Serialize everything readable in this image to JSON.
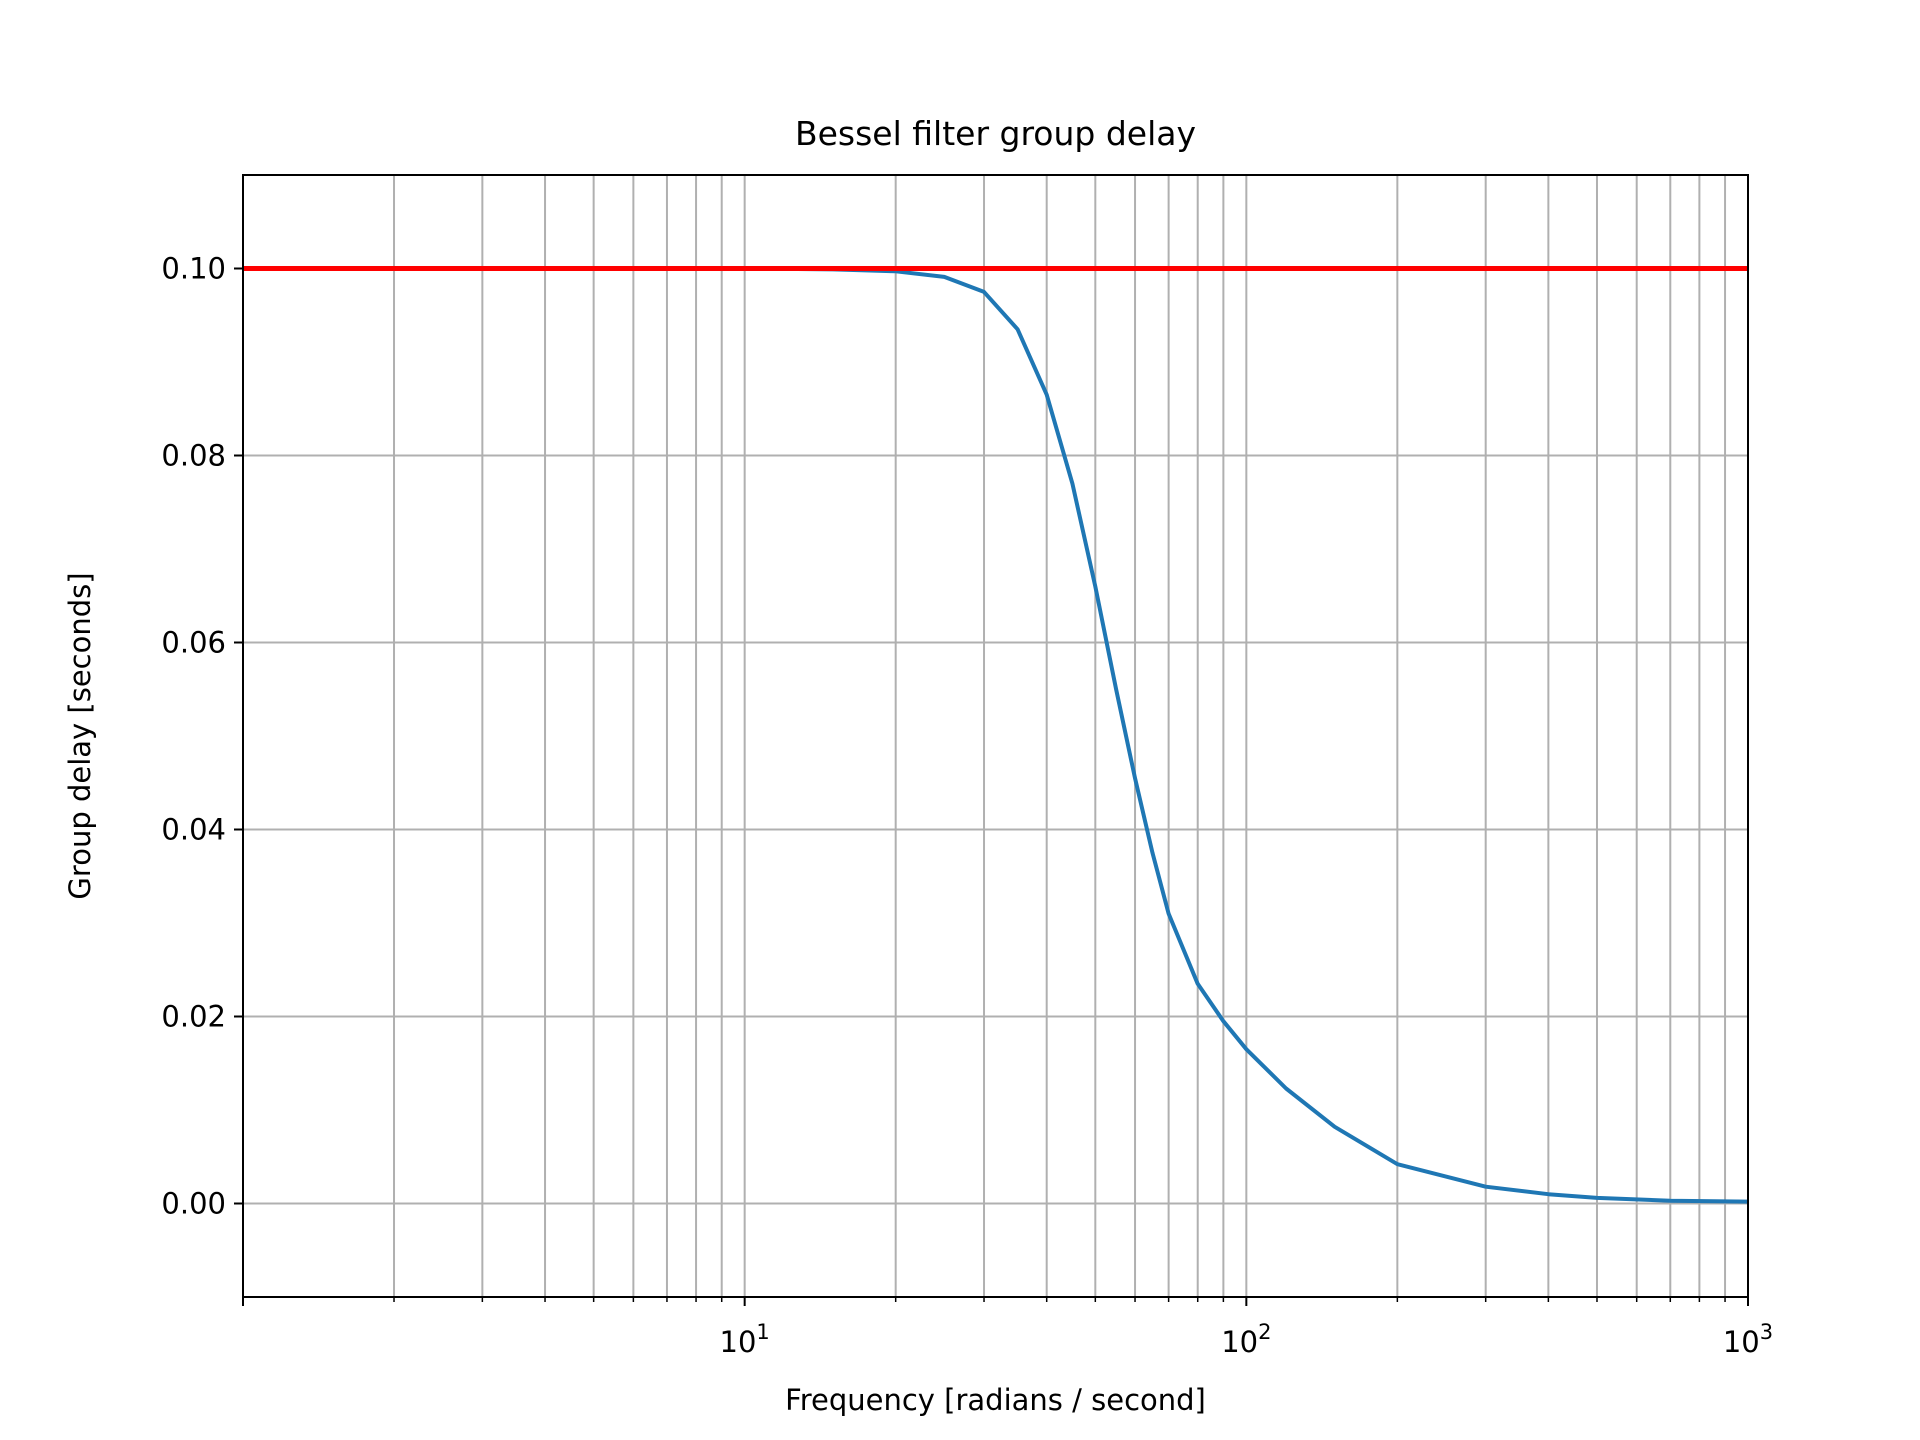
{
  "chart_data": {
    "type": "line",
    "title": "Bessel filter group delay",
    "xlabel": "Frequency [radians / second]",
    "ylabel": "Group delay [seconds]",
    "xscale": "log",
    "xlim": [
      1,
      1000
    ],
    "ylim": [
      -0.01,
      0.11
    ],
    "grid": {
      "major": true,
      "minor_x": true
    },
    "x_ticks": [
      {
        "value": 10,
        "base": "10",
        "exp": "1"
      },
      {
        "value": 100,
        "base": "10",
        "exp": "2"
      },
      {
        "value": 1000,
        "base": "10",
        "exp": "3"
      }
    ],
    "y_ticks": [
      {
        "value": 0.0,
        "label": "0.00"
      },
      {
        "value": 0.02,
        "label": "0.02"
      },
      {
        "value": 0.04,
        "label": "0.04"
      },
      {
        "value": 0.06,
        "label": "0.06"
      },
      {
        "value": 0.08,
        "label": "0.08"
      },
      {
        "value": 0.1,
        "label": "0.10"
      }
    ],
    "series": [
      {
        "color": "#1f77b4",
        "x": [
          1,
          5,
          10,
          15,
          20,
          25,
          30,
          35,
          40,
          45,
          50,
          55,
          60,
          65,
          70,
          80,
          90,
          100,
          120,
          150,
          200,
          300,
          400,
          500,
          700,
          1000
        ],
        "y": [
          0.1,
          0.1,
          0.1,
          0.0999,
          0.0997,
          0.0991,
          0.0975,
          0.0935,
          0.0865,
          0.077,
          0.066,
          0.055,
          0.0455,
          0.0375,
          0.031,
          0.0235,
          0.0195,
          0.0165,
          0.0123,
          0.0082,
          0.0042,
          0.0018,
          0.001,
          0.0006,
          0.0003,
          0.0002
        ]
      }
    ],
    "reference_line": {
      "y": 0.1,
      "color": "#ff0000"
    }
  }
}
